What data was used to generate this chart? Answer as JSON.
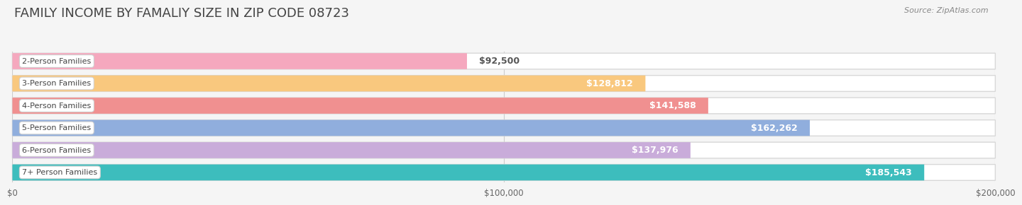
{
  "title": "FAMILY INCOME BY FAMALIY SIZE IN ZIP CODE 08723",
  "source": "Source: ZipAtlas.com",
  "categories": [
    "2-Person Families",
    "3-Person Families",
    "4-Person Families",
    "5-Person Families",
    "6-Person Families",
    "7+ Person Families"
  ],
  "values": [
    92500,
    128812,
    141588,
    162262,
    137976,
    185543
  ],
  "labels": [
    "$92,500",
    "$128,812",
    "$141,588",
    "$162,262",
    "$137,976",
    "$185,543"
  ],
  "bar_colors": [
    "#F5A8BE",
    "#F9C87E",
    "#F09090",
    "#90AEDD",
    "#C9ACDA",
    "#3DBDBD"
  ],
  "background_color": "#F5F5F5",
  "track_color": "#E8E8E8",
  "track_border_color": "#D8D8D8",
  "xlim": [
    0,
    200000
  ],
  "xticks": [
    0,
    100000,
    200000
  ],
  "xtick_labels": [
    "$0",
    "$100,000",
    "$200,000"
  ],
  "title_fontsize": 13,
  "label_fontsize": 9,
  "cat_fontsize": 8,
  "bar_height": 0.72,
  "label_color_inside": "#FFFFFF",
  "label_color_outside": "#555555",
  "outside_threshold": 100000
}
